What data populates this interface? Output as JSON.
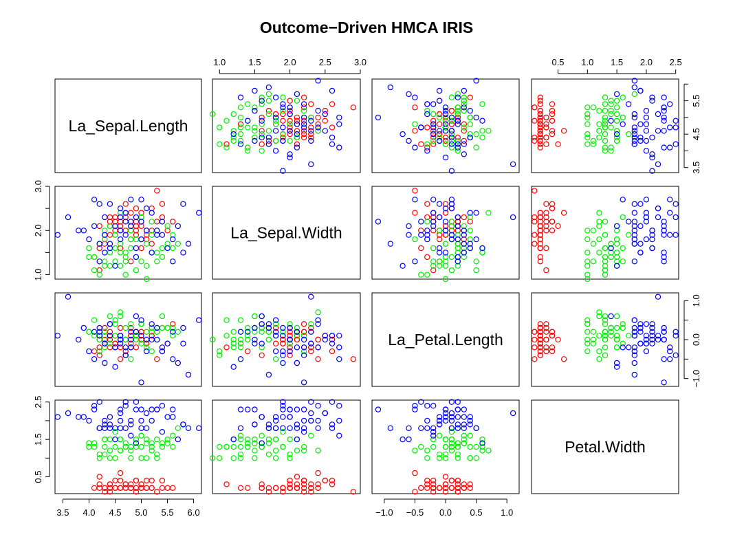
{
  "chart_data": {
    "type": "scatter",
    "subtype": "pairs-matrix",
    "title": "Outcome−Driven HMCA IRIS",
    "variables": [
      "La_Sepal.Length",
      "La_Sepal.Width",
      "La_Petal.Length",
      "Petal.Width"
    ],
    "ranges": [
      [
        3.35,
        6.15
      ],
      [
        0.9,
        3.0
      ],
      [
        -1.2,
        1.2
      ],
      [
        0.05,
        2.55
      ]
    ],
    "ticks": [
      {
        "values": [
          3.5,
          4.0,
          4.5,
          5.0,
          5.5,
          6.0
        ],
        "labels": [
          "3.5",
          "4.0",
          "4.5",
          "5.0",
          "5.5",
          "6.0"
        ]
      },
      {
        "values": [
          1.0,
          1.5,
          2.0,
          2.5,
          3.0
        ],
        "labels": [
          "1.0",
          "1.5",
          "2.0",
          "2.5",
          "3.0"
        ],
        "left_labels": [
          "1.0",
          "2.0",
          "3.0"
        ]
      },
      {
        "values": [
          -1.0,
          -0.5,
          0.0,
          0.5,
          1.0
        ],
        "labels": [
          "−1.0",
          "−0.5",
          "0.0",
          "0.5",
          "1.0"
        ],
        "right_labels": [
          "−1.0",
          "0.0",
          "1.0"
        ]
      },
      {
        "values": [
          0.5,
          1.0,
          1.5,
          2.0,
          2.5
        ],
        "labels": [
          "0.5",
          "1.0",
          "1.5",
          "2.0",
          "2.5"
        ],
        "left_labels": [
          "0.5",
          "1.5",
          "2.5"
        ]
      }
    ],
    "right_axis_row0": {
      "values": [
        3.5,
        4.5,
        5.5
      ],
      "labels": [
        "3.5",
        "4.5",
        "5.5"
      ]
    },
    "colors": {
      "setosa": "#ff0000",
      "versicolor": "#00ee00",
      "virginica": "#0000ff"
    },
    "groups": [
      {
        "color_key": "setosa",
        "points": [
          [
            4.6,
            2.1,
            0.1,
            0.2
          ],
          [
            4.9,
            2.0,
            -0.2,
            0.2
          ],
          [
            4.3,
            1.8,
            0.3,
            0.2
          ],
          [
            5.1,
            1.9,
            -0.1,
            0.2
          ],
          [
            4.7,
            2.4,
            0.0,
            0.2
          ],
          [
            5.4,
            2.6,
            -0.3,
            0.4
          ],
          [
            4.4,
            2.2,
            0.2,
            0.3
          ],
          [
            4.8,
            2.1,
            0.1,
            0.2
          ],
          [
            4.2,
            1.6,
            -0.4,
            0.2
          ],
          [
            4.9,
            1.9,
            0.0,
            0.1
          ],
          [
            5.0,
            2.3,
            0.2,
            0.2
          ],
          [
            4.5,
            2.0,
            -0.1,
            0.2
          ],
          [
            4.3,
            1.7,
            0.2,
            0.1
          ],
          [
            5.3,
            2.9,
            -0.5,
            0.1
          ],
          [
            5.6,
            2.2,
            0.4,
            0.2
          ],
          [
            5.2,
            2.5,
            0.1,
            0.4
          ],
          [
            4.6,
            2.2,
            -0.2,
            0.4
          ],
          [
            4.8,
            2.0,
            0.3,
            0.3
          ],
          [
            5.0,
            2.4,
            0.0,
            0.3
          ],
          [
            4.7,
            2.3,
            -0.3,
            0.3
          ],
          [
            4.4,
            1.9,
            0.1,
            0.2
          ],
          [
            4.9,
            2.2,
            0.2,
            0.4
          ],
          [
            5.1,
            1.8,
            -0.1,
            0.2
          ],
          [
            4.2,
            2.1,
            0.0,
            0.5
          ],
          [
            4.6,
            1.6,
            0.3,
            0.2
          ],
          [
            4.8,
            2.4,
            -0.2,
            0.2
          ],
          [
            4.5,
            2.2,
            0.1,
            0.4
          ],
          [
            4.7,
            2.0,
            -0.4,
            0.2
          ],
          [
            5.0,
            2.1,
            0.2,
            0.2
          ],
          [
            4.3,
            1.9,
            0.0,
            0.2
          ],
          [
            5.5,
            2.0,
            -0.1,
            0.2
          ],
          [
            4.9,
            2.5,
            0.1,
            0.4
          ],
          [
            4.4,
            2.3,
            -0.2,
            0.1
          ],
          [
            5.2,
            1.7,
            0.3,
            0.2
          ],
          [
            4.6,
            2.0,
            0.0,
            0.2
          ],
          [
            4.8,
            1.8,
            0.1,
            0.2
          ],
          [
            4.1,
            1.4,
            -0.3,
            0.2
          ],
          [
            5.3,
            2.2,
            0.2,
            0.1
          ],
          [
            4.5,
            1.9,
            -0.1,
            0.2
          ],
          [
            4.7,
            2.6,
            0.0,
            0.3
          ],
          [
            5.0,
            1.6,
            0.4,
            0.3
          ],
          [
            4.2,
            1.1,
            -0.2,
            0.3
          ],
          [
            4.9,
            2.1,
            0.1,
            0.2
          ],
          [
            4.6,
            2.4,
            -0.5,
            0.6
          ],
          [
            5.1,
            2.0,
            0.2,
            0.4
          ],
          [
            4.4,
            2.1,
            0.0,
            0.3
          ],
          [
            4.8,
            1.3,
            -0.1,
            0.2
          ],
          [
            5.4,
            2.3,
            0.3,
            0.2
          ],
          [
            4.5,
            2.3,
            -0.2,
            0.2
          ],
          [
            5.2,
            2.0,
            0.1,
            0.2
          ]
        ]
      },
      {
        "color_key": "versicolor",
        "points": [
          [
            5.2,
            1.5,
            0.3,
            1.4
          ],
          [
            4.9,
            1.8,
            0.1,
            1.5
          ],
          [
            4.3,
            1.3,
            -0.2,
            1.5
          ],
          [
            5.4,
            1.6,
            0.6,
            1.3
          ],
          [
            4.6,
            1.7,
            0.0,
            1.5
          ],
          [
            4.0,
            1.4,
            0.2,
            1.3
          ],
          [
            5.0,
            2.3,
            0.4,
            1.6
          ],
          [
            4.4,
            1.2,
            -0.1,
            1.0
          ],
          [
            5.6,
            1.9,
            0.1,
            1.3
          ],
          [
            4.7,
            1.5,
            0.3,
            1.4
          ],
          [
            4.2,
            1.0,
            -0.3,
            1.0
          ],
          [
            5.3,
            2.0,
            0.0,
            1.5
          ],
          [
            4.5,
            1.3,
            0.5,
            1.0
          ],
          [
            5.1,
            1.7,
            0.2,
            1.4
          ],
          [
            4.8,
            1.6,
            -0.2,
            1.3
          ],
          [
            4.1,
            1.4,
            0.1,
            1.4
          ],
          [
            5.5,
            2.1,
            0.3,
            1.5
          ],
          [
            4.6,
            1.2,
            0.0,
            1.5
          ],
          [
            5.0,
            1.8,
            0.4,
            1.0
          ],
          [
            4.3,
            2.0,
            -0.1,
            1.1
          ],
          [
            5.7,
            1.7,
            0.2,
            1.8
          ],
          [
            4.9,
            1.1,
            0.1,
            1.3
          ],
          [
            4.4,
            1.5,
            0.6,
            1.5
          ],
          [
            5.2,
            2.2,
            -0.3,
            1.2
          ],
          [
            4.7,
            1.3,
            0.0,
            1.3
          ],
          [
            4.0,
            1.6,
            0.2,
            1.4
          ],
          [
            5.4,
            1.4,
            0.3,
            1.4
          ],
          [
            4.5,
            1.9,
            0.1,
            1.7
          ],
          [
            5.1,
            1.2,
            -0.2,
            1.5
          ],
          [
            4.8,
            2.0,
            0.4,
            1.0
          ],
          [
            4.2,
            1.7,
            0.0,
            1.1
          ],
          [
            5.3,
            1.5,
            0.2,
            1.0
          ],
          [
            4.6,
            2.4,
            0.7,
            1.2
          ],
          [
            5.0,
            1.3,
            -0.1,
            1.6
          ],
          [
            4.3,
            1.8,
            0.1,
            1.5
          ],
          [
            5.6,
            1.6,
            0.3,
            1.6
          ],
          [
            4.9,
            1.4,
            0.0,
            1.5
          ],
          [
            4.1,
            1.1,
            0.5,
            1.3
          ],
          [
            5.2,
            1.9,
            0.2,
            1.3
          ],
          [
            4.7,
            1.0,
            -0.4,
            1.3
          ],
          [
            4.4,
            2.1,
            0.1,
            1.2
          ],
          [
            5.5,
            1.7,
            0.3,
            1.4
          ],
          [
            4.6,
            1.5,
            0.6,
            1.2
          ],
          [
            5.1,
            0.9,
            0.0,
            1.0
          ],
          [
            4.3,
            1.2,
            0.2,
            1.3
          ],
          [
            4.8,
            1.8,
            -0.5,
            1.2
          ],
          [
            5.0,
            2.2,
            0.1,
            1.3
          ],
          [
            4.5,
            1.6,
            0.4,
            1.3
          ],
          [
            5.3,
            1.3,
            0.2,
            1.1
          ],
          [
            4.7,
            1.4,
            0.0,
            1.3
          ]
        ]
      },
      {
        "color_key": "virginica",
        "points": [
          [
            4.9,
            2.3,
            0.2,
            2.5
          ],
          [
            5.8,
            2.6,
            -0.1,
            1.9
          ],
          [
            4.4,
            1.6,
            0.4,
            2.1
          ],
          [
            5.1,
            2.0,
            -0.3,
            1.8
          ],
          [
            4.6,
            2.5,
            0.1,
            2.2
          ],
          [
            3.8,
            2.0,
            0.0,
            2.1
          ],
          [
            5.4,
            2.2,
            -0.2,
            1.7
          ],
          [
            4.2,
            1.7,
            0.3,
            1.8
          ],
          [
            6.1,
            2.4,
            0.5,
            1.8
          ],
          [
            4.7,
            1.9,
            -0.4,
            2.5
          ],
          [
            5.0,
            2.7,
            0.1,
            2.0
          ],
          [
            4.3,
            1.5,
            -0.1,
            1.9
          ],
          [
            5.6,
            1.8,
            0.2,
            2.1
          ],
          [
            4.8,
            2.2,
            0.0,
            2.0
          ],
          [
            4.1,
            2.7,
            -0.5,
            2.4
          ],
          [
            5.3,
            1.9,
            0.3,
            2.3
          ],
          [
            4.5,
            2.1,
            -0.2,
            1.8
          ],
          [
            3.6,
            2.3,
            1.1,
            2.2
          ],
          [
            4.9,
            1.4,
            0.2,
            2.3
          ],
          [
            5.7,
            2.1,
            -0.6,
            1.5
          ],
          [
            4.6,
            2.0,
            0.0,
            2.3
          ],
          [
            4.0,
            1.8,
            -0.3,
            2.0
          ],
          [
            5.2,
            2.4,
            0.4,
            2.0
          ],
          [
            4.4,
            2.6,
            0.1,
            1.8
          ],
          [
            5.5,
            1.6,
            -0.1,
            2.1
          ],
          [
            4.7,
            2.2,
            -0.4,
            1.8
          ],
          [
            4.2,
            1.3,
            0.2,
            1.8
          ],
          [
            5.0,
            1.8,
            0.5,
            1.8
          ],
          [
            3.4,
            1.9,
            0.1,
            2.1
          ],
          [
            4.8,
            2.7,
            -0.2,
            1.6
          ],
          [
            5.8,
            1.5,
            0.3,
            1.9
          ],
          [
            4.3,
            2.3,
            -0.1,
            2.0
          ],
          [
            5.1,
            2.5,
            0.0,
            2.2
          ],
          [
            4.5,
            1.2,
            -0.7,
            1.5
          ],
          [
            4.9,
            1.6,
            0.6,
            1.4
          ],
          [
            4.1,
            2.1,
            0.2,
            2.3
          ],
          [
            5.4,
            1.9,
            -0.3,
            2.4
          ],
          [
            4.6,
            1.8,
            0.1,
            1.8
          ],
          [
            5.9,
            1.7,
            -0.9,
            1.8
          ],
          [
            3.9,
            2.0,
            0.3,
            2.1
          ],
          [
            4.7,
            2.4,
            -0.2,
            2.4
          ],
          [
            5.3,
            2.0,
            0.0,
            2.3
          ],
          [
            4.4,
            1.7,
            0.4,
            1.9
          ],
          [
            5.0,
            2.2,
            -1.1,
            2.3
          ],
          [
            4.2,
            2.6,
            0.1,
            2.5
          ],
          [
            5.6,
            1.3,
            -0.5,
            2.3
          ],
          [
            4.8,
            2.1,
            0.2,
            1.9
          ],
          [
            4.6,
            2.3,
            -0.1,
            2.0
          ],
          [
            5.2,
            1.5,
            0.0,
            2.3
          ],
          [
            4.3,
            1.9,
            -0.6,
            1.8
          ]
        ]
      }
    ]
  }
}
